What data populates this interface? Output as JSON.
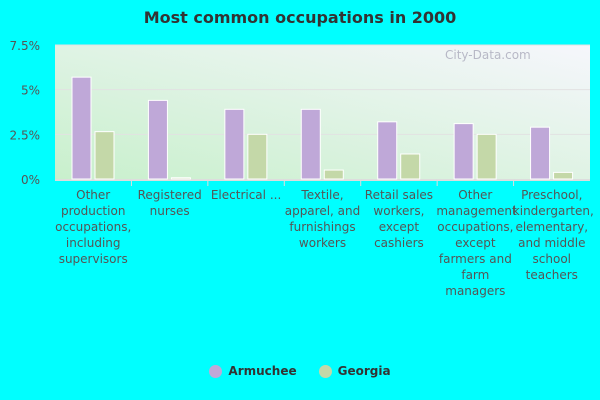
{
  "chart_data": {
    "type": "bar",
    "title": "Most common occupations in 2000",
    "xlabel": "",
    "ylabel": "",
    "ylim": [
      0,
      7.5
    ],
    "yticks": [
      "0%",
      "2.5%",
      "5%",
      "7.5%"
    ],
    "ytick_values": [
      0,
      2.5,
      5,
      7.5
    ],
    "categories": [
      "Other production occupations, including supervisors",
      "Registered nurses",
      "Electrical ...",
      "Textile, apparel, and furnishings workers",
      "Retail sales workers, except cashiers",
      "Other management occupations, except farmers and farm managers",
      "Preschool, kindergarten, elementary, and middle school teachers"
    ],
    "series": [
      {
        "name": "Armuchee",
        "color": "#bfa8d8",
        "values": [
          5.7,
          4.4,
          3.9,
          3.9,
          3.2,
          3.1,
          2.9
        ]
      },
      {
        "name": "Georgia",
        "color": "#c4d8a8",
        "values": [
          2.65,
          0.07,
          2.5,
          0.5,
          1.4,
          2.5,
          0.37
        ]
      }
    ],
    "legend": "bottom",
    "grid": true
  },
  "watermark": "City-Data.com"
}
